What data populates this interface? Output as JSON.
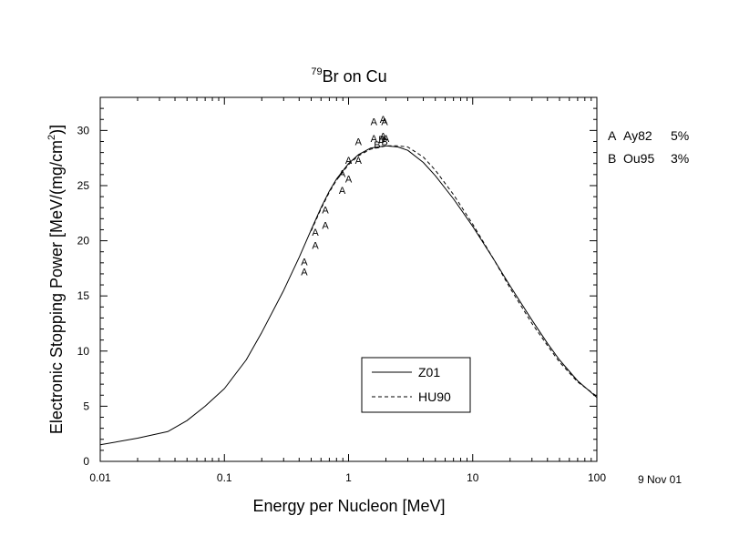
{
  "chart_data": {
    "type": "line",
    "title_sup": "79",
    "title_main": "Br on Cu",
    "xlabel": "Energy per Nucleon [MeV]",
    "ylabel_main": "Electronic Stopping Power [MeV/(mg/cm",
    "ylabel_sup": "2",
    "ylabel_end": ")]",
    "xscale": "log",
    "xlim": [
      0.01,
      100
    ],
    "ylim": [
      0,
      33
    ],
    "x_ticks": [
      0.01,
      0.1,
      1,
      10,
      100
    ],
    "x_tick_labels": [
      "0.01",
      "0.1",
      "1",
      "10",
      "100"
    ],
    "y_ticks": [
      0,
      5,
      10,
      15,
      20,
      25,
      30
    ],
    "y_tick_labels": [
      "0",
      "5",
      "10",
      "15",
      "20",
      "25",
      "30"
    ],
    "date": "9 Nov 01",
    "series": [
      {
        "name": "Z01",
        "style": "solid",
        "x": [
          0.01,
          0.02,
          0.035,
          0.05,
          0.07,
          0.1,
          0.15,
          0.2,
          0.3,
          0.4,
          0.5,
          0.6,
          0.7,
          0.8,
          1.0,
          1.2,
          1.5,
          2.0,
          2.5,
          3.0,
          4.0,
          5.0,
          7.0,
          10,
          15,
          20,
          30,
          40,
          50,
          70,
          100
        ],
        "values": [
          1.5,
          2.1,
          2.7,
          3.7,
          5.0,
          6.6,
          9.2,
          11.7,
          15.5,
          18.5,
          21.0,
          23.0,
          24.5,
          25.6,
          27.0,
          27.8,
          28.4,
          28.6,
          28.5,
          28.2,
          27.1,
          25.9,
          23.8,
          21.3,
          18.2,
          15.9,
          12.8,
          10.7,
          9.2,
          7.3,
          5.8
        ]
      },
      {
        "name": "HU90",
        "style": "dashed",
        "x": [
          0.5,
          0.6,
          0.7,
          0.8,
          1.0,
          1.2,
          1.5,
          2.0,
          2.5,
          3.0,
          4.0,
          5.0,
          7.0,
          10,
          15,
          20,
          30,
          40,
          50,
          70,
          100
        ],
        "values": [
          20.9,
          22.9,
          24.4,
          25.5,
          26.9,
          27.7,
          28.3,
          28.6,
          28.6,
          28.5,
          27.6,
          26.4,
          24.2,
          21.5,
          18.2,
          15.7,
          12.5,
          10.5,
          9.0,
          7.2,
          5.9
        ]
      }
    ],
    "experimental": [
      {
        "marker": "A",
        "x": [
          0.44,
          0.44,
          0.54,
          0.54,
          0.65,
          0.65,
          0.89,
          0.89,
          1.0,
          1.0,
          1.2,
          1.2,
          1.6,
          1.6,
          1.9,
          1.9,
          1.95,
          2.0
        ],
        "values": [
          17.2,
          18.1,
          19.6,
          20.8,
          21.4,
          22.8,
          24.6,
          26.1,
          25.6,
          27.3,
          27.3,
          29.0,
          29.3,
          30.8,
          29.5,
          31.0,
          30.8,
          29.3
        ]
      },
      {
        "marker": "B",
        "x": [
          1.7,
          1.85,
          1.95
        ],
        "values": [
          28.7,
          29.2,
          29.0
        ]
      }
    ],
    "data_key": [
      {
        "marker": "A",
        "ref": "Ay82",
        "uncertainty": "5%"
      },
      {
        "marker": "B",
        "ref": "Ou95",
        "uncertainty": "3%"
      }
    ],
    "legend_placement": "bottom-right"
  }
}
